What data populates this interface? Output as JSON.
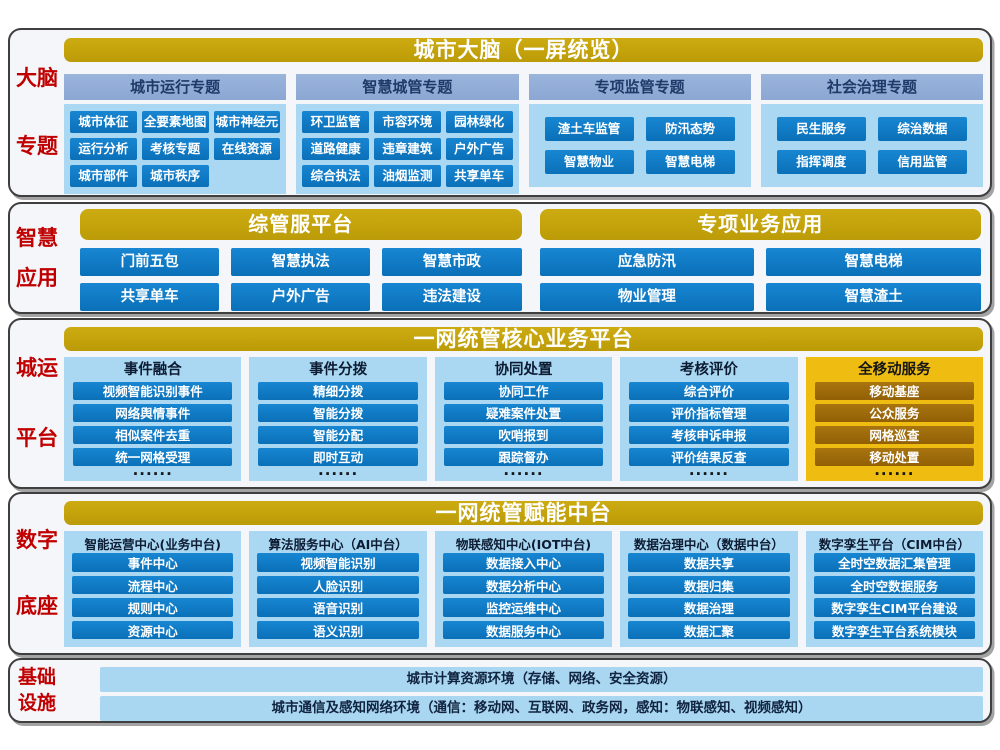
{
  "colors": {
    "gold_banner": "#c2a10c",
    "gold_column": "#efbd12",
    "bronze_button": "#9c6b08",
    "blue_button": "#0d78c2",
    "light_blue_container": "#aad8f2",
    "periwinkle_header": "#92acd6",
    "red_side_label": "#c00000",
    "navy_text": "#0d1b33"
  },
  "brain": {
    "side_label": [
      "大脑",
      "专题"
    ],
    "title": "城市大脑（一屏统览）",
    "groups": [
      {
        "header": "城市运行专题",
        "items": [
          "城市体征",
          "全要素地图",
          "城市神经元",
          "运行分析",
          "考核专题",
          "在线资源",
          "城市部件",
          "城市秩序"
        ]
      },
      {
        "header": "智慧城管专题",
        "items": [
          "环卫监管",
          "市容环境",
          "园林绿化",
          "道路健康",
          "违章建筑",
          "户外广告",
          "综合执法",
          "油烟监测",
          "共享单车"
        ]
      },
      {
        "header": "专项监管专题",
        "items": [
          "渣土车监管",
          "防汛态势",
          "智慧物业",
          "智慧电梯"
        ]
      },
      {
        "header": "社会治理专题",
        "items": [
          "民生服务",
          "综治数据",
          "指挥调度",
          "信用监管"
        ]
      }
    ]
  },
  "apps": {
    "side_label": [
      "智慧",
      "应用"
    ],
    "groups": [
      {
        "title": "综管服平台",
        "items": [
          "门前五包",
          "智慧执法",
          "智慧市政",
          "共享单车",
          "户外广告",
          "违法建设"
        ]
      },
      {
        "title": "专项业务应用",
        "items": [
          "应急防汛",
          "智慧电梯",
          "物业管理",
          "智慧渣土"
        ]
      }
    ]
  },
  "core": {
    "side_label": [
      "城运",
      "平台"
    ],
    "title": "一网统管核心业务平台",
    "more": "······",
    "columns": [
      {
        "header": "事件融合",
        "items": [
          "视频智能识别事件",
          "网络舆情事件",
          "相似案件去重",
          "统一网格受理"
        ]
      },
      {
        "header": "事件分拨",
        "items": [
          "精细分拨",
          "智能分拨",
          "智能分配",
          "即时互动"
        ]
      },
      {
        "header": "协同处置",
        "items": [
          "协同工作",
          "疑难案件处置",
          "吹哨报到",
          "跟踪督办"
        ]
      },
      {
        "header": "考核评价",
        "items": [
          "综合评价",
          "评价指标管理",
          "考核申诉申报",
          "评价结果反查"
        ]
      },
      {
        "header": "全移动服务",
        "items": [
          "移动基座",
          "公众服务",
          "网格巡查",
          "移动处置"
        ]
      }
    ]
  },
  "middle": {
    "side_label": [
      "数字",
      "底座"
    ],
    "title": "一网统管赋能中台",
    "columns": [
      {
        "header": "智能运营中心(业务中台)",
        "items": [
          "事件中心",
          "流程中心",
          "规则中心",
          "资源中心"
        ]
      },
      {
        "header": "算法服务中心（AI中台）",
        "items": [
          "视频智能识别",
          "人脸识别",
          "语音识别",
          "语义识别"
        ]
      },
      {
        "header": "物联感知中心(IOT中台)",
        "items": [
          "数据接入中心",
          "数据分析中心",
          "监控运维中心",
          "数据服务中心"
        ]
      },
      {
        "header": "数据治理中心（数据中台）",
        "items": [
          "数据共享",
          "数据归集",
          "数据治理",
          "数据汇聚"
        ]
      },
      {
        "header": "数字孪生平台（CIM中台）",
        "items": [
          "全时空数据汇集管理",
          "全时空数据服务",
          "数字孪生CIM平台建设",
          "数字孪生平台系统模块"
        ]
      }
    ]
  },
  "infra": {
    "side_label": [
      "基础",
      "设施"
    ],
    "bars": [
      "城市计算资源环境（存储、网络、安全资源）",
      "城市通信及感知网络环境（通信：移动网、互联网、政务网，感知：物联感知、视频感知）"
    ]
  }
}
